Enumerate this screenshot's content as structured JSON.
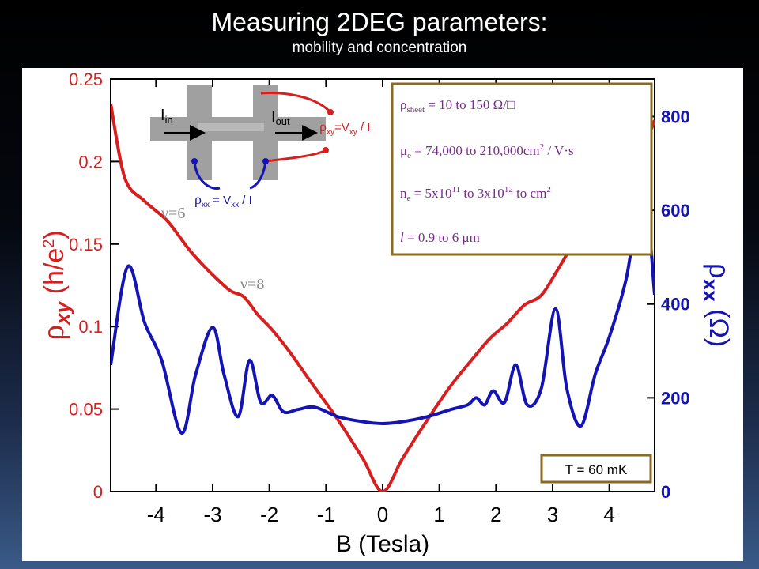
{
  "title": "Measuring 2DEG parameters:",
  "subtitle": "mobility and concentration",
  "colors": {
    "rho_xy": "#d71f1f",
    "rho_xx": "#1414b4",
    "annotation_gray": "#8a8a8a",
    "box_border": "#8a6a20",
    "box_text": "#7a2a8a"
  },
  "chart_data": {
    "type": "line",
    "xlabel": "B (Tesla)",
    "ylabel_left": "ρxy (h/e²)",
    "ylabel_right": "ρxx (Ω)",
    "xlim": [
      -4.8,
      4.8
    ],
    "ylim_left": [
      0,
      0.25
    ],
    "ylim_right": [
      0,
      880
    ],
    "x_ticks": [
      "-4",
      "-3",
      "-2",
      "-1",
      "0",
      "1",
      "2",
      "3",
      "4"
    ],
    "y_ticks_left": [
      "0",
      "0.05",
      "0.1",
      "0.15",
      "0.2",
      "0.25"
    ],
    "y_ticks_right": [
      "0",
      "200",
      "400",
      "600",
      "800"
    ],
    "series": [
      {
        "name": "ρxy",
        "axis": "left",
        "points": [
          [
            -4.8,
            0.235
          ],
          [
            -4.55,
            0.19
          ],
          [
            -4.2,
            0.176
          ],
          [
            -3.8,
            0.164
          ],
          [
            -3.4,
            0.146
          ],
          [
            -3.05,
            0.133
          ],
          [
            -2.7,
            0.122
          ],
          [
            -2.45,
            0.118
          ],
          [
            -2.2,
            0.107
          ],
          [
            -1.95,
            0.098
          ],
          [
            -1.65,
            0.085
          ],
          [
            -1.3,
            0.068
          ],
          [
            -0.8,
            0.044
          ],
          [
            -0.35,
            0.02
          ],
          [
            0,
            0
          ],
          [
            0.35,
            0.02
          ],
          [
            0.8,
            0.044
          ],
          [
            1.2,
            0.064
          ],
          [
            1.6,
            0.081
          ],
          [
            1.9,
            0.093
          ],
          [
            2.2,
            0.102
          ],
          [
            2.5,
            0.113
          ],
          [
            2.8,
            0.119
          ],
          [
            3.1,
            0.135
          ],
          [
            3.4,
            0.152
          ],
          [
            3.75,
            0.167
          ],
          [
            4.1,
            0.179
          ],
          [
            4.4,
            0.19
          ],
          [
            4.8,
            0.225
          ]
        ]
      },
      {
        "name": "ρxx",
        "axis": "right",
        "points": [
          [
            -4.8,
            270
          ],
          [
            -4.5,
            480
          ],
          [
            -4.2,
            360
          ],
          [
            -3.9,
            280
          ],
          [
            -3.55,
            125
          ],
          [
            -3.3,
            250
          ],
          [
            -3.0,
            350
          ],
          [
            -2.8,
            250
          ],
          [
            -2.55,
            160
          ],
          [
            -2.35,
            280
          ],
          [
            -2.15,
            190
          ],
          [
            -1.95,
            205
          ],
          [
            -1.75,
            170
          ],
          [
            -1.5,
            175
          ],
          [
            -1.2,
            180
          ],
          [
            -0.8,
            160
          ],
          [
            -0.4,
            150
          ],
          [
            0,
            145
          ],
          [
            0.4,
            150
          ],
          [
            0.8,
            160
          ],
          [
            1.2,
            175
          ],
          [
            1.5,
            185
          ],
          [
            1.65,
            200
          ],
          [
            1.8,
            185
          ],
          [
            1.95,
            215
          ],
          [
            2.15,
            190
          ],
          [
            2.35,
            270
          ],
          [
            2.55,
            185
          ],
          [
            2.8,
            220
          ],
          [
            3.05,
            390
          ],
          [
            3.25,
            220
          ],
          [
            3.5,
            140
          ],
          [
            3.75,
            250
          ],
          [
            4.0,
            330
          ],
          [
            4.3,
            455
          ],
          [
            4.6,
            650
          ],
          [
            4.8,
            420
          ]
        ]
      }
    ],
    "annotations": {
      "nu6": "ν=6",
      "nu8": "ν=8",
      "temperature": "T = 60 mK",
      "params": {
        "line1": "ρsheet = 10 to 150 Ω/□",
        "line2": "μe = 74,000 to 210,000cm² / V·s",
        "line3": "ne = 5x10¹¹ to 3x10¹² to cm²",
        "line4": "l = 0.9 to 6 μm"
      },
      "schematic": {
        "i_in": "I in",
        "i_out": "I out",
        "rho_xy_def": "ρxy=Vxy / I",
        "rho_xx_def": "ρxx = Vxx / I"
      }
    }
  }
}
